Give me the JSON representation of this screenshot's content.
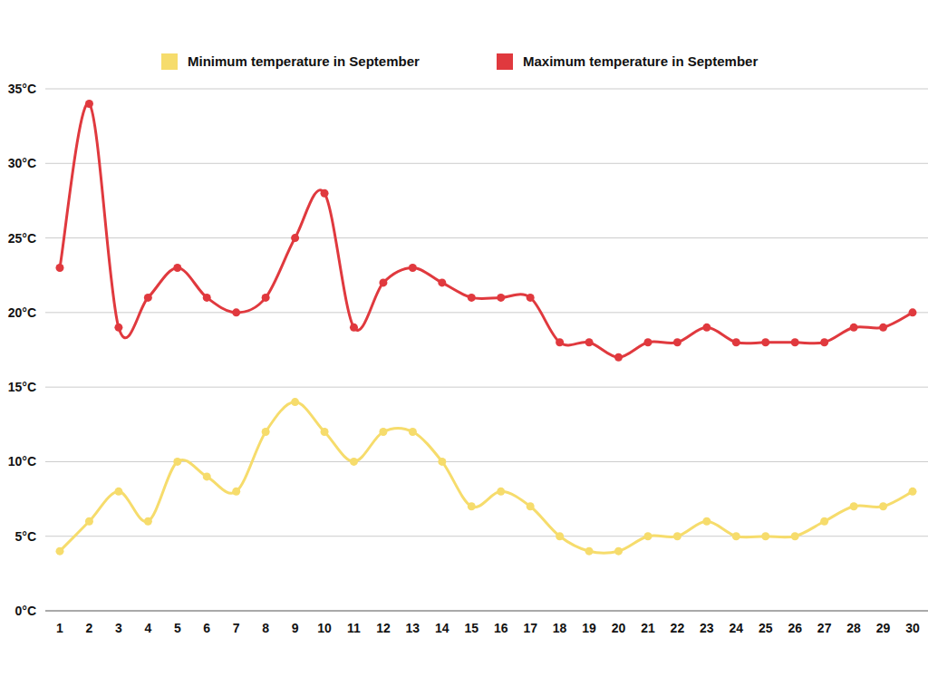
{
  "chart_data": {
    "type": "line",
    "categories": [
      "1",
      "2",
      "3",
      "4",
      "5",
      "6",
      "7",
      "8",
      "9",
      "10",
      "11",
      "12",
      "13",
      "14",
      "15",
      "16",
      "17",
      "18",
      "19",
      "20",
      "21",
      "22",
      "23",
      "24",
      "25",
      "26",
      "27",
      "28",
      "29",
      "30"
    ],
    "series": [
      {
        "name": "Minimum temperature in September",
        "color": "#f6dc6c",
        "marker": "circle",
        "values": [
          4,
          6,
          8,
          6,
          10,
          9,
          8,
          12,
          14,
          12,
          10,
          12,
          12,
          10,
          7,
          8,
          7,
          5,
          4,
          4,
          5,
          5,
          6,
          5,
          5,
          5,
          6,
          7,
          7,
          8
        ]
      },
      {
        "name": "Maximum temperature in September",
        "color": "#e0393e",
        "marker": "circle",
        "values": [
          23,
          34,
          19,
          21,
          23,
          21,
          20,
          21,
          25,
          28,
          19,
          22,
          23,
          22,
          21,
          21,
          21,
          18,
          18,
          17,
          18,
          18,
          19,
          18,
          18,
          18,
          18,
          19,
          19,
          20
        ]
      }
    ],
    "ylim": [
      0,
      35
    ],
    "yticks": [
      {
        "value": 0,
        "label": "0°C"
      },
      {
        "value": 5,
        "label": "5°C"
      },
      {
        "value": 10,
        "label": "10°C"
      },
      {
        "value": 15,
        "label": "15°C"
      },
      {
        "value": 20,
        "label": "20°C"
      },
      {
        "value": 25,
        "label": "25°C"
      },
      {
        "value": 30,
        "label": "30°C"
      },
      {
        "value": 35,
        "label": "35°C"
      }
    ],
    "grid": true,
    "legend": "top"
  }
}
